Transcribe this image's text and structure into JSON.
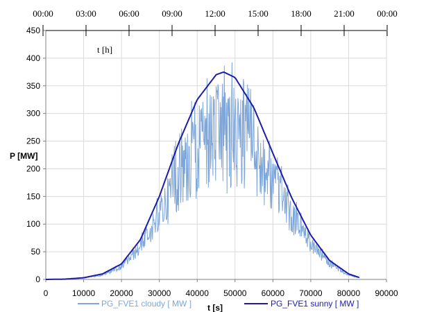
{
  "chart_data": {
    "type": "line",
    "ylabel": "P [MW]",
    "xlabel": "t [s]",
    "xlim": [
      0,
      90000
    ],
    "ylim": [
      0,
      450
    ],
    "x_ticks": [
      0,
      10000,
      20000,
      30000,
      40000,
      50000,
      60000,
      70000,
      80000,
      90000
    ],
    "y_ticks": [
      0,
      50,
      100,
      150,
      200,
      250,
      300,
      350,
      400,
      450
    ],
    "grid": true,
    "legend_position": "bottom",
    "secondary_axis": {
      "label": "t [h]",
      "position": "top",
      "ticks": [
        "00:00",
        "03:00",
        "06:00",
        "09:00",
        "12:00",
        "15:00",
        "18:00",
        "21:00",
        "00:00"
      ]
    },
    "series": [
      {
        "name": "PG_FVE1 cloudy [ MW ]",
        "color": "#7ea6d8",
        "style": "noisy",
        "peak_min": 120,
        "peak_max": 415
      },
      {
        "name": "PG_FVE1 sunny [ MW ]",
        "color": "#1c1ca8",
        "style": "smooth",
        "x": [
          0,
          5000,
          10000,
          15000,
          20000,
          25000,
          30000,
          35000,
          40000,
          45000,
          47000,
          50000,
          55000,
          60000,
          65000,
          70000,
          75000,
          80000,
          83000
        ],
        "y": [
          0,
          0.5,
          3,
          10,
          28,
          72,
          150,
          245,
          325,
          370,
          375,
          365,
          310,
          228,
          147,
          80,
          34,
          10,
          3
        ]
      }
    ]
  }
}
